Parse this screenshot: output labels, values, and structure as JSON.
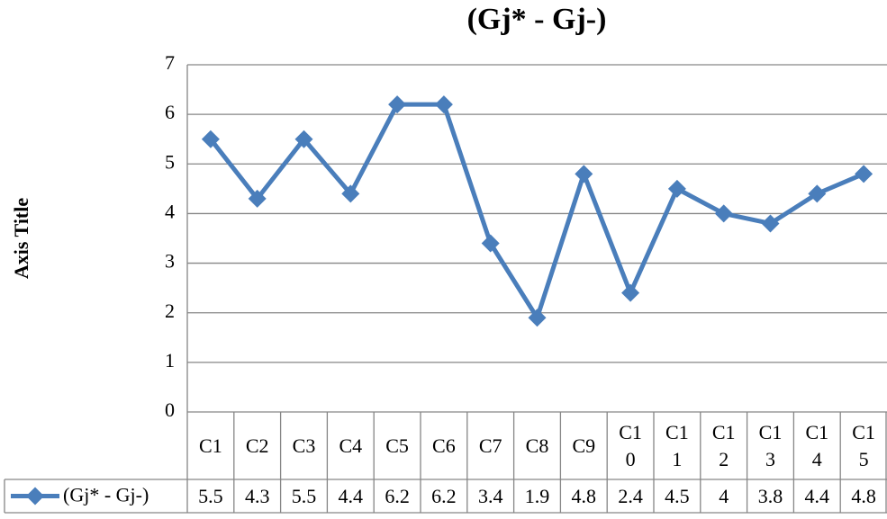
{
  "chart_data": {
    "type": "line",
    "title": "(Gj* - Gj-)",
    "y_axis_label": "Axis Title",
    "categories": [
      "C1",
      "C2",
      "C3",
      "C4",
      "C5",
      "C6",
      "C7",
      "C8",
      "C9",
      "C10",
      "C11",
      "C12",
      "C13",
      "C14",
      "C15"
    ],
    "series": [
      {
        "name": "(Gj* - Gj-)",
        "color": "#4a7ebb",
        "values": [
          5.5,
          4.3,
          5.5,
          4.4,
          6.2,
          6.2,
          3.4,
          1.9,
          4.8,
          2.4,
          4.5,
          4,
          3.8,
          4.4,
          4.8
        ]
      }
    ],
    "ylim": [
      0,
      7
    ],
    "yticks": [
      0,
      1,
      2,
      3,
      4,
      5,
      6,
      7
    ],
    "grid": true
  }
}
